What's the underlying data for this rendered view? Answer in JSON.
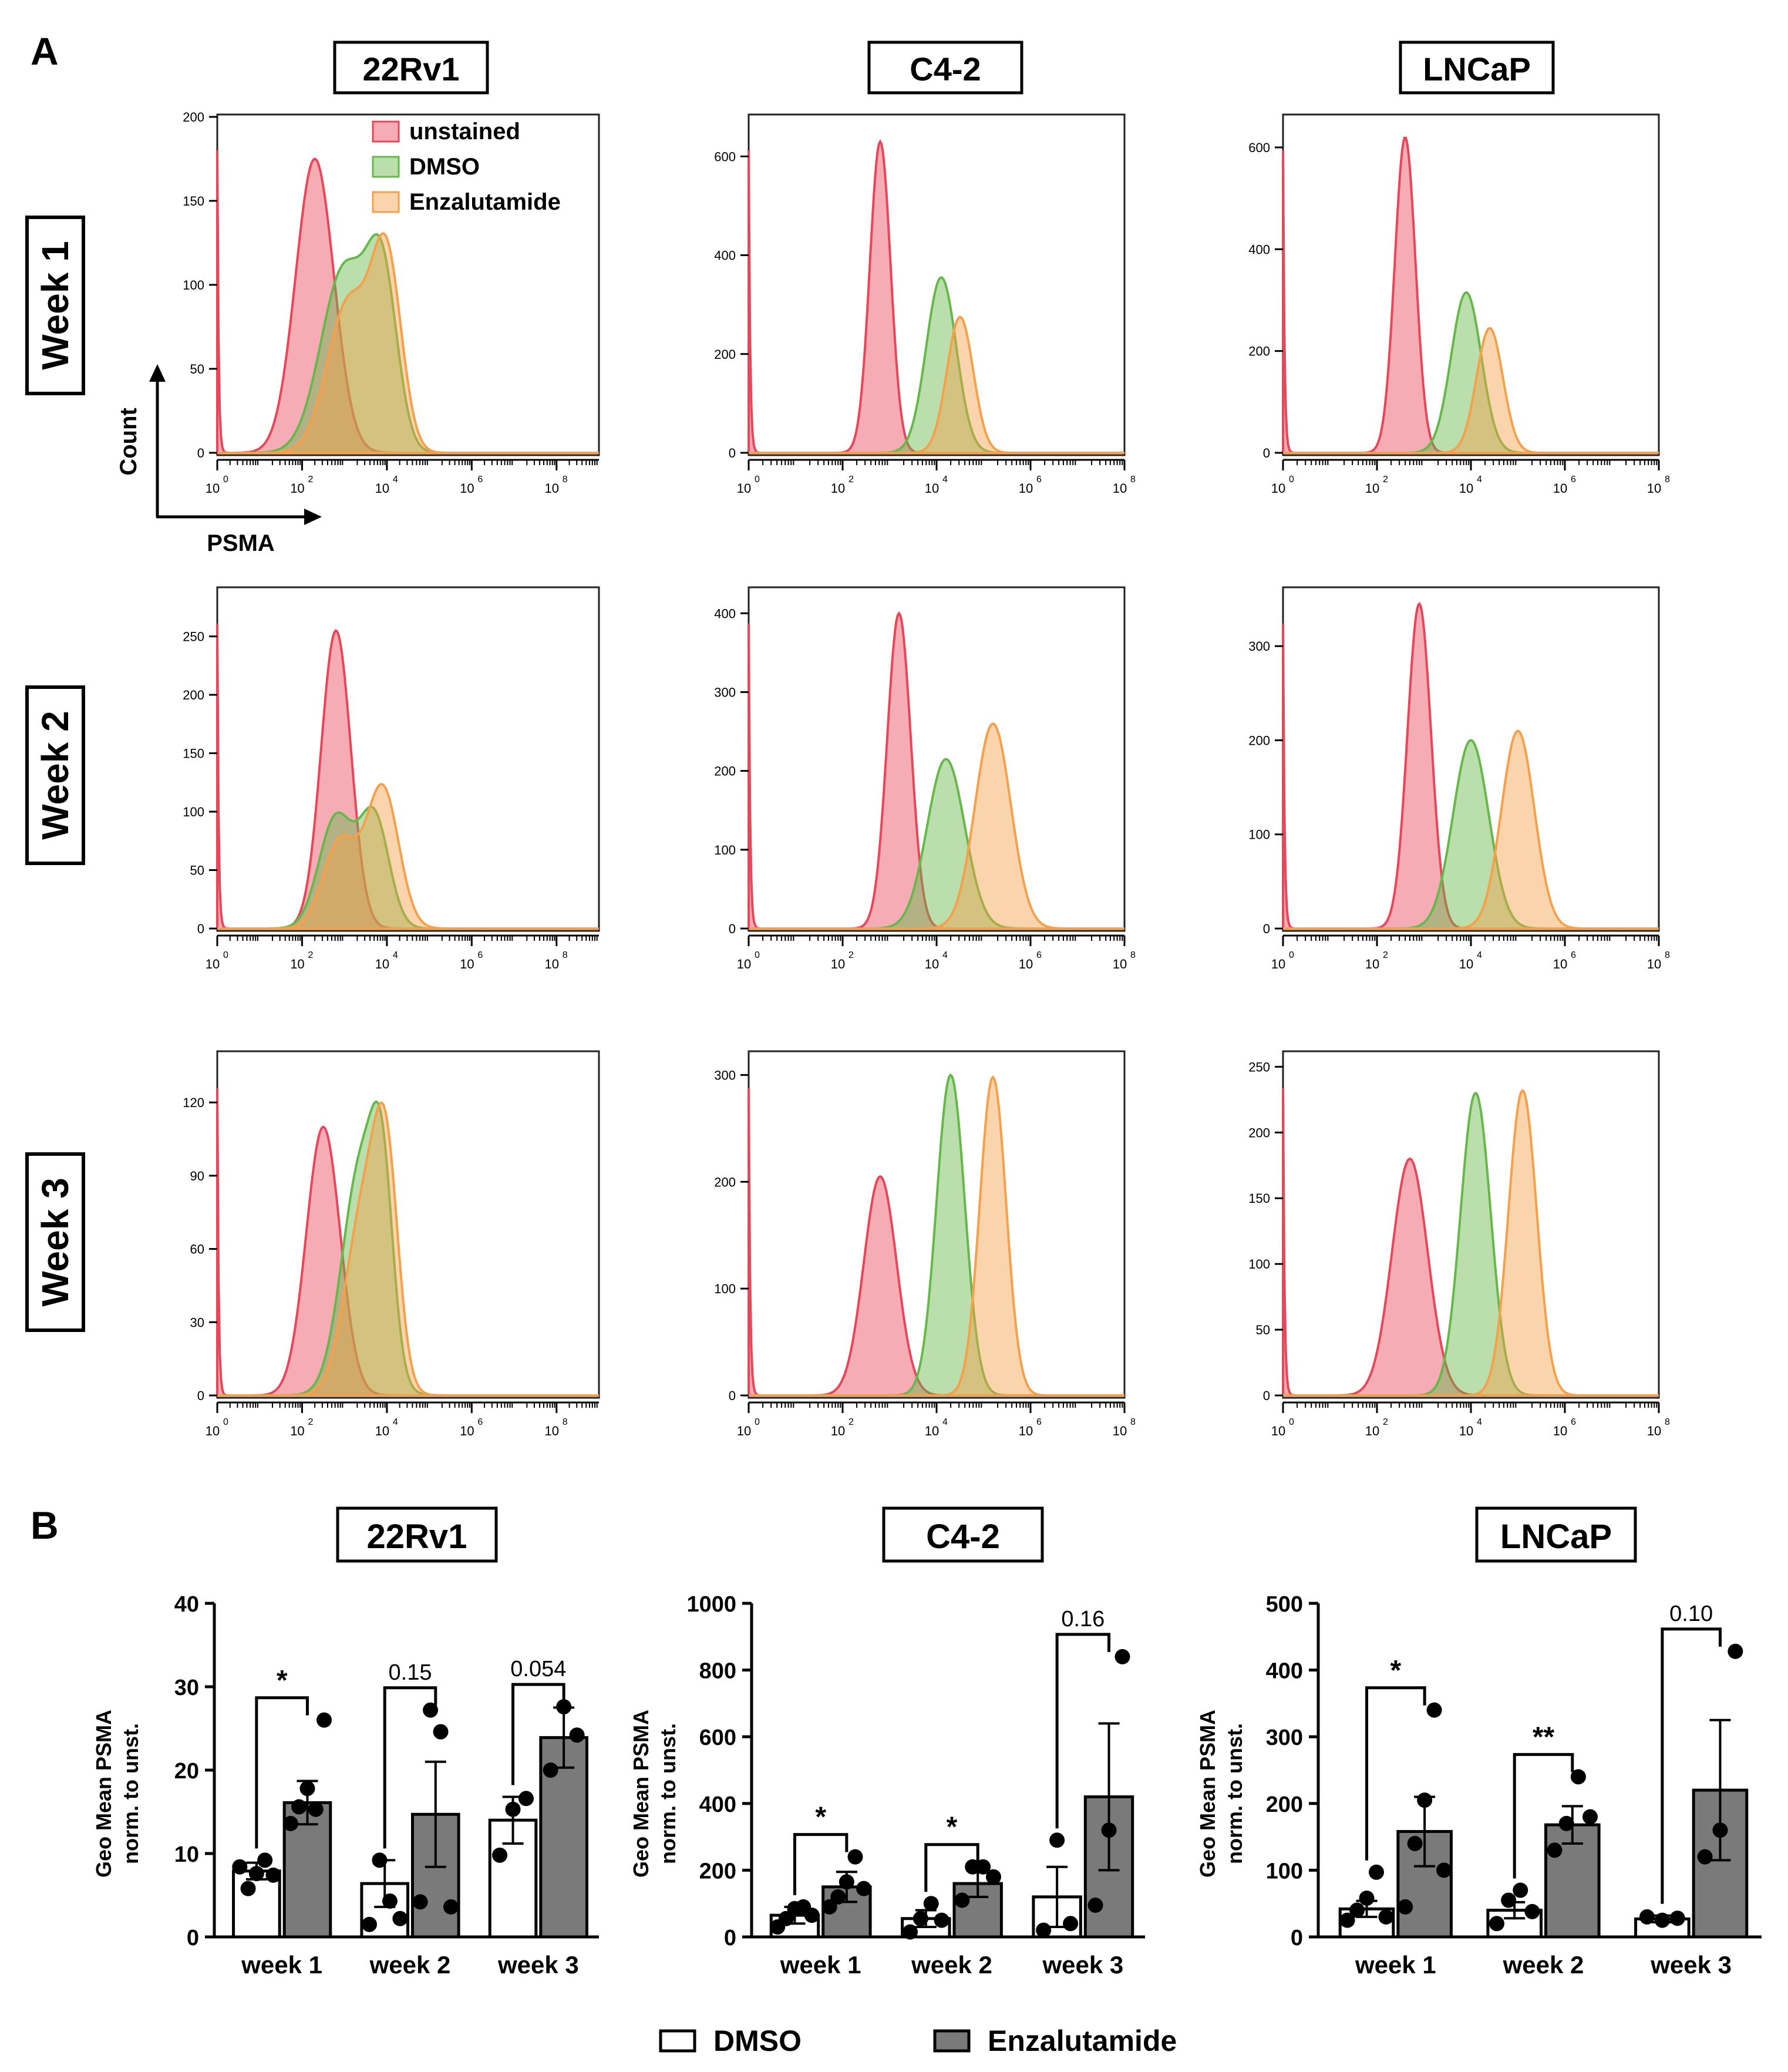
{
  "panel_a_label": "A",
  "panel_b_label": "B",
  "cell_lines": [
    "22Rv1",
    "C4-2",
    "LNCaP"
  ],
  "weeks": [
    "Week 1",
    "Week 2",
    "Week 3"
  ],
  "axis_annotation": {
    "x": "PSMA",
    "y": "Count"
  },
  "colors": {
    "unstained": "#e8475a",
    "dmso": "#66b84a",
    "enzalutamide": "#f5a04a",
    "bar_dmso": "#ffffff",
    "bar_enza": "#7a7a7a"
  },
  "bottom_legend": {
    "dmso": "DMSO",
    "enzalutamide": "Enzalutamide"
  },
  "chart_data": [
    {
      "type": "area",
      "panel": "A",
      "cell_line": "22Rv1",
      "week": "Week 1",
      "xscale": "log10",
      "xlim": [
        0,
        9
      ],
      "xticks": [
        "10^0",
        "10^2",
        "10^4",
        "10^6",
        "10^8"
      ],
      "xtick_values": [
        0,
        2,
        4,
        6,
        8
      ],
      "ylim": [
        0,
        200
      ],
      "yticks": [
        0,
        50,
        100,
        150,
        200
      ],
      "ylabel": "Count",
      "xlabel": "PSMA",
      "legend": [
        "unstained",
        "DMSO",
        "Enzalutamide"
      ],
      "legend_position": "top-right",
      "series": [
        {
          "name": "unstained",
          "peaks": [
            {
              "mu": 2.3,
              "sigma": 0.45,
              "amp": 175
            }
          ]
        },
        {
          "name": "DMSO",
          "peaks": [
            {
              "mu": 3.0,
              "sigma": 0.55,
              "amp": 110
            },
            {
              "mu": 3.9,
              "sigma": 0.35,
              "amp": 95
            }
          ]
        },
        {
          "name": "Enzalutamide",
          "peaks": [
            {
              "mu": 3.1,
              "sigma": 0.5,
              "amp": 90
            },
            {
              "mu": 4.0,
              "sigma": 0.35,
              "amp": 110
            }
          ]
        }
      ]
    },
    {
      "type": "area",
      "panel": "A",
      "cell_line": "C4-2",
      "week": "Week 1",
      "xscale": "log10",
      "xlim": [
        0,
        8
      ],
      "xticks": [
        "10^0",
        "10^2",
        "10^4",
        "10^6",
        "10^8"
      ],
      "xtick_values": [
        0,
        2,
        4,
        6,
        8
      ],
      "ylim": [
        0,
        680
      ],
      "yticks": [
        0,
        200,
        400,
        600
      ],
      "series": [
        {
          "name": "unstained",
          "peaks": [
            {
              "mu": 2.8,
              "sigma": 0.22,
              "amp": 630
            }
          ]
        },
        {
          "name": "DMSO",
          "peaks": [
            {
              "mu": 4.1,
              "sigma": 0.32,
              "amp": 355
            }
          ]
        },
        {
          "name": "Enzalutamide",
          "peaks": [
            {
              "mu": 4.5,
              "sigma": 0.28,
              "amp": 275
            }
          ]
        }
      ]
    },
    {
      "type": "area",
      "panel": "A",
      "cell_line": "LNCaP",
      "week": "Week 1",
      "xscale": "log10",
      "xlim": [
        0,
        8
      ],
      "xticks": [
        "10^0",
        "10^2",
        "10^4",
        "10^6",
        "10^8"
      ],
      "xtick_values": [
        0,
        2,
        4,
        6,
        8
      ],
      "ylim": [
        0,
        660
      ],
      "yticks": [
        0,
        200,
        400,
        600
      ],
      "series": [
        {
          "name": "unstained",
          "peaks": [
            {
              "mu": 2.6,
              "sigma": 0.22,
              "amp": 620
            }
          ]
        },
        {
          "name": "DMSO",
          "peaks": [
            {
              "mu": 3.9,
              "sigma": 0.32,
              "amp": 315
            }
          ]
        },
        {
          "name": "Enzalutamide",
          "peaks": [
            {
              "mu": 4.4,
              "sigma": 0.28,
              "amp": 245
            }
          ]
        }
      ]
    },
    {
      "type": "area",
      "panel": "A",
      "cell_line": "22Rv1",
      "week": "Week 2",
      "xscale": "log10",
      "xlim": [
        0,
        9
      ],
      "xticks": [
        "10^0",
        "10^2",
        "10^4",
        "10^6",
        "10^8"
      ],
      "xtick_values": [
        0,
        2,
        4,
        6,
        8
      ],
      "ylim": [
        0,
        290
      ],
      "yticks": [
        0,
        50,
        100,
        150,
        200,
        250
      ],
      "ytick_labels": [
        "0",
        "50",
        "100",
        "150",
        "200",
        "250"
      ],
      "series": [
        {
          "name": "unstained",
          "peaks": [
            {
              "mu": 2.8,
              "sigma": 0.35,
              "amp": 255
            }
          ]
        },
        {
          "name": "DMSO",
          "peaks": [
            {
              "mu": 2.8,
              "sigma": 0.4,
              "amp": 95
            },
            {
              "mu": 3.7,
              "sigma": 0.35,
              "amp": 95
            }
          ]
        },
        {
          "name": "Enzalutamide",
          "peaks": [
            {
              "mu": 2.9,
              "sigma": 0.4,
              "amp": 75
            },
            {
              "mu": 3.9,
              "sigma": 0.38,
              "amp": 120
            }
          ]
        }
      ]
    },
    {
      "type": "area",
      "panel": "A",
      "cell_line": "C4-2",
      "week": "Week 2",
      "xscale": "log10",
      "xlim": [
        0,
        8
      ],
      "xticks": [
        "10^0",
        "10^2",
        "10^4",
        "10^6",
        "10^8"
      ],
      "xtick_values": [
        0,
        2,
        4,
        6,
        8
      ],
      "ylim": [
        0,
        430
      ],
      "yticks": [
        0,
        100,
        200,
        300,
        400
      ],
      "series": [
        {
          "name": "unstained",
          "peaks": [
            {
              "mu": 3.2,
              "sigma": 0.25,
              "amp": 400
            }
          ]
        },
        {
          "name": "DMSO",
          "peaks": [
            {
              "mu": 4.2,
              "sigma": 0.4,
              "amp": 215
            }
          ]
        },
        {
          "name": "Enzalutamide",
          "peaks": [
            {
              "mu": 5.2,
              "sigma": 0.38,
              "amp": 260
            }
          ]
        }
      ]
    },
    {
      "type": "area",
      "panel": "A",
      "cell_line": "LNCaP",
      "week": "Week 2",
      "xscale": "log10",
      "xlim": [
        0,
        8
      ],
      "xticks": [
        "10^0",
        "10^2",
        "10^4",
        "10^6",
        "10^8"
      ],
      "xtick_values": [
        0,
        2,
        4,
        6,
        8
      ],
      "ylim": [
        0,
        360
      ],
      "yticks": [
        0,
        100,
        200,
        300
      ],
      "series": [
        {
          "name": "unstained",
          "peaks": [
            {
              "mu": 2.9,
              "sigma": 0.25,
              "amp": 345
            }
          ]
        },
        {
          "name": "DMSO",
          "peaks": [
            {
              "mu": 4.0,
              "sigma": 0.38,
              "amp": 200
            }
          ]
        },
        {
          "name": "Enzalutamide",
          "peaks": [
            {
              "mu": 5.0,
              "sigma": 0.35,
              "amp": 210
            }
          ]
        }
      ]
    },
    {
      "type": "area",
      "panel": "A",
      "cell_line": "22Rv1",
      "week": "Week 3",
      "xscale": "log10",
      "xlim": [
        0,
        9
      ],
      "xticks": [
        "10^0",
        "10^2",
        "10^4",
        "10^6",
        "10^8"
      ],
      "xtick_values": [
        0,
        2,
        4,
        6,
        8
      ],
      "ylim": [
        0,
        140
      ],
      "yticks": [
        0,
        30,
        60,
        90,
        120
      ],
      "series": [
        {
          "name": "unstained",
          "peaks": [
            {
              "mu": 2.5,
              "sigma": 0.4,
              "amp": 110
            }
          ]
        },
        {
          "name": "DMSO",
          "peaks": [
            {
              "mu": 3.4,
              "sigma": 0.45,
              "amp": 95
            },
            {
              "mu": 3.9,
              "sigma": 0.25,
              "amp": 60
            }
          ]
        },
        {
          "name": "Enzalutamide",
          "peaks": [
            {
              "mu": 3.5,
              "sigma": 0.45,
              "amp": 80
            },
            {
              "mu": 4.0,
              "sigma": 0.28,
              "amp": 70
            }
          ]
        }
      ]
    },
    {
      "type": "area",
      "panel": "A",
      "cell_line": "C4-2",
      "week": "Week 3",
      "xscale": "log10",
      "xlim": [
        0,
        8
      ],
      "xticks": [
        "10^0",
        "10^2",
        "10^4",
        "10^6",
        "10^8"
      ],
      "xtick_values": [
        0,
        2,
        4,
        6,
        8
      ],
      "ylim": [
        0,
        320
      ],
      "yticks": [
        0,
        100,
        200,
        300
      ],
      "series": [
        {
          "name": "unstained",
          "peaks": [
            {
              "mu": 2.8,
              "sigma": 0.35,
              "amp": 205
            }
          ]
        },
        {
          "name": "DMSO",
          "peaks": [
            {
              "mu": 4.3,
              "sigma": 0.3,
              "amp": 300
            }
          ]
        },
        {
          "name": "Enzalutamide",
          "peaks": [
            {
              "mu": 5.2,
              "sigma": 0.28,
              "amp": 298
            }
          ]
        }
      ]
    },
    {
      "type": "area",
      "panel": "A",
      "cell_line": "LNCaP",
      "week": "Week 3",
      "xscale": "log10",
      "xlim": [
        0,
        8
      ],
      "xticks": [
        "10^0",
        "10^2",
        "10^4",
        "10^6",
        "10^8"
      ],
      "xtick_values": [
        0,
        2,
        4,
        6,
        8
      ],
      "ylim": [
        0,
        260
      ],
      "yticks": [
        0,
        50,
        100,
        150,
        200,
        250
      ],
      "series": [
        {
          "name": "unstained",
          "peaks": [
            {
              "mu": 2.7,
              "sigma": 0.38,
              "amp": 180
            }
          ]
        },
        {
          "name": "DMSO",
          "peaks": [
            {
              "mu": 4.1,
              "sigma": 0.32,
              "amp": 230
            }
          ]
        },
        {
          "name": "Enzalutamide",
          "peaks": [
            {
              "mu": 5.1,
              "sigma": 0.3,
              "amp": 232
            }
          ]
        }
      ]
    },
    {
      "type": "bar",
      "panel": "B",
      "cell_line": "22Rv1",
      "ylabel": "Geo Mean PSMA\nnorm. to unst.",
      "ylim": [
        0,
        40
      ],
      "yticks": [
        0,
        10,
        20,
        30,
        40
      ],
      "categories": [
        "week 1",
        "week 2",
        "week 3"
      ],
      "series": [
        {
          "name": "DMSO",
          "values": [
            7.9,
            6.4,
            14.0
          ],
          "sem": [
            1.0,
            2.8,
            2.8
          ],
          "points": [
            [
              8.4,
              5.8,
              7.6,
              9.2,
              7.4
            ],
            [
              1.5,
              9.2,
              4.3,
              2.2
            ],
            [
              9.8,
              15.3,
              16.6
            ]
          ]
        },
        {
          "name": "Enzalutamide",
          "values": [
            16.1,
            14.7,
            23.9
          ],
          "sem": [
            2.6,
            6.3,
            3.6
          ],
          "points": [
            [
              13.6,
              15.6,
              17.8,
              15.3,
              26.0
            ],
            [
              4.2,
              27.2,
              24.6,
              3.6
            ],
            [
              20.0,
              27.6,
              24.2
            ]
          ]
        }
      ],
      "significance": [
        "*",
        "0.15",
        "0.054"
      ]
    },
    {
      "type": "bar",
      "panel": "B",
      "cell_line": "C4-2",
      "ylabel": "Geo Mean PSMA\nnorm. to unst.",
      "ylim": [
        0,
        1000
      ],
      "yticks": [
        0,
        200,
        400,
        600,
        800,
        1000
      ],
      "categories": [
        "week 1",
        "week 2",
        "week 3"
      ],
      "series": [
        {
          "name": "DMSO",
          "values": [
            65,
            55,
            120
          ],
          "sem": [
            25,
            25,
            90
          ],
          "points": [
            [
              30,
              55,
              85,
              90,
              65
            ],
            [
              15,
              55,
              100,
              50
            ],
            [
              20,
              290,
              40
            ]
          ]
        },
        {
          "name": "Enzalutamide",
          "values": [
            150,
            160,
            420
          ],
          "sem": [
            45,
            40,
            220
          ],
          "points": [
            [
              90,
              120,
              165,
              240,
              145
            ],
            [
              110,
              210,
              210,
              180
            ],
            [
              95,
              320,
              840
            ]
          ]
        }
      ],
      "significance": [
        "*",
        "*",
        "0.16"
      ]
    },
    {
      "type": "bar",
      "panel": "B",
      "cell_line": "LNCaP",
      "ylabel": "Geo Mean PSMA\nnorm. to unst.",
      "ylim": [
        0,
        500
      ],
      "yticks": [
        0,
        100,
        200,
        300,
        400,
        500
      ],
      "categories": [
        "week 1",
        "week 2",
        "week 3"
      ],
      "series": [
        {
          "name": "DMSO",
          "values": [
            42,
            40,
            27
          ],
          "sem": [
            12,
            12,
            5
          ],
          "points": [
            [
              25,
              40,
              58,
              97,
              30
            ],
            [
              20,
              55,
              70,
              38
            ],
            [
              30,
              25,
              28
            ]
          ]
        },
        {
          "name": "Enzalutamide",
          "values": [
            158,
            168,
            220
          ],
          "sem": [
            52,
            28,
            105
          ],
          "points": [
            [
              45,
              140,
              205,
              340,
              100
            ],
            [
              130,
              170,
              240,
              180
            ],
            [
              120,
              160,
              428
            ]
          ]
        }
      ],
      "significance": [
        "*",
        "**",
        "0.10"
      ]
    }
  ]
}
